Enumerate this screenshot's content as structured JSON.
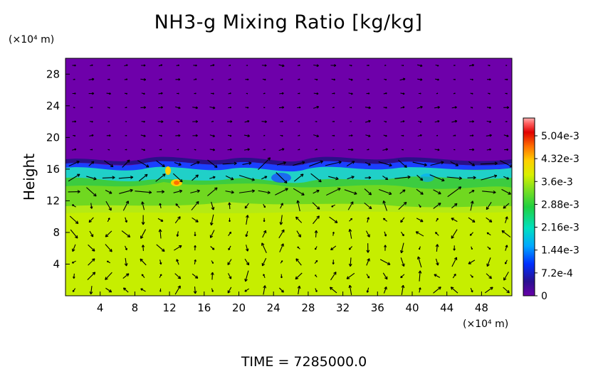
{
  "chart_data": {
    "type": "heatmap",
    "title": "NH3-g Mixing Ratio [kg/kg]",
    "ylabel": "Height",
    "y_unit": "(×10⁴ m)",
    "x_unit": "(×10⁴ m)",
    "x_ticks": [
      "4",
      "8",
      "12",
      "16",
      "20",
      "24",
      "28",
      "32",
      "36",
      "40",
      "44",
      "48"
    ],
    "y_ticks": [
      "4",
      "8",
      "12",
      "16",
      "20",
      "24",
      "28"
    ],
    "xlim": [
      0,
      51.5
    ],
    "ylim": [
      0,
      30
    ],
    "colorbar": {
      "ticks": [
        "5.04e-3",
        "4.32e-3",
        "3.6e-3",
        "2.88e-3",
        "2.16e-3",
        "1.44e-3",
        "7.2e-4",
        "0"
      ],
      "range": [
        0,
        0.0056
      ]
    },
    "regions": [
      {
        "field": "upper layer",
        "y_from": 17,
        "y_to": 30,
        "value": 0
      },
      {
        "field": "interface band",
        "y_from": 15,
        "y_to": 17,
        "value": 0.002
      },
      {
        "field": "mixed layer",
        "y_from": 12,
        "y_to": 15,
        "value": 0.0029
      },
      {
        "field": "lower layer",
        "y_from": 0,
        "y_to": 12,
        "value": 0.0035
      }
    ],
    "overlay": "wind vector arrows",
    "time_label": "TIME  =  7285000.0"
  },
  "colors": {
    "purple": "#7000a8",
    "lime": "#c8f000",
    "green": "#60d020",
    "cyan": "#20d0d0",
    "blue": "#0040ff",
    "navy": "#2a1080"
  }
}
